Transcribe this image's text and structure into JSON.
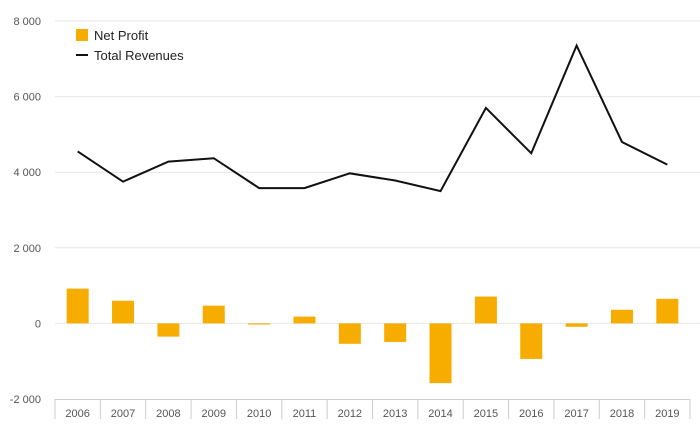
{
  "chart_data": {
    "type": "bar",
    "categories": [
      "2006",
      "2007",
      "2008",
      "2009",
      "2010",
      "2011",
      "2012",
      "2013",
      "2014",
      "2015",
      "2016",
      "2017",
      "2018",
      "2019"
    ],
    "series": [
      {
        "name": "Net Profit",
        "type": "bar",
        "color": "#f7ac00",
        "values": [
          920,
          600,
          -350,
          470,
          -30,
          180,
          -540,
          -490,
          -1580,
          710,
          -940,
          -90,
          360,
          650
        ]
      },
      {
        "name": "Total Revenues",
        "type": "line",
        "color": "#111111",
        "values": [
          4550,
          3750,
          4280,
          4370,
          3580,
          3580,
          3970,
          3780,
          3500,
          5700,
          4500,
          7350,
          4800,
          4200
        ]
      }
    ],
    "y_ticks": [
      "8 000",
      "6 000",
      "4 000",
      "2 000",
      "0",
      "-2 000"
    ],
    "ylim": [
      -2000,
      8000
    ],
    "grid": true,
    "legend_position": "top-left"
  }
}
